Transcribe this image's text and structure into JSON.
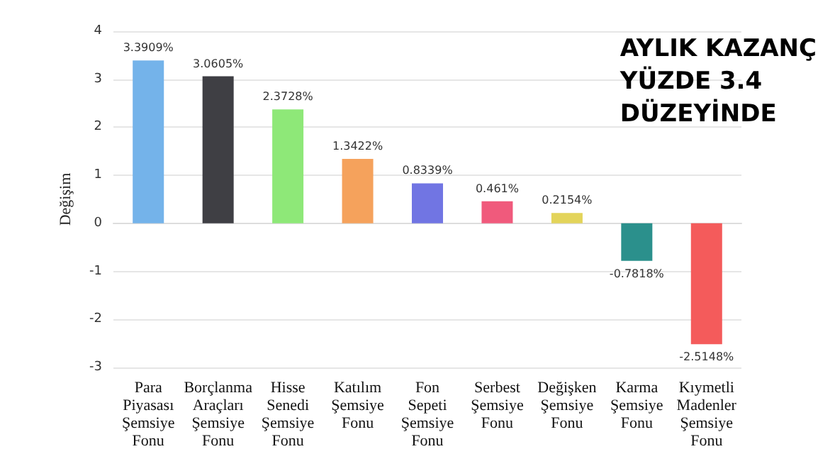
{
  "chart_data": {
    "type": "bar",
    "title": "AYLIK KAZANÇ\nYÜZDE 3.4\nDÜZEYİNDE",
    "ylabel": "Değişim",
    "categories": [
      "Para Piyasası Şemsiye Fonu",
      "Borçlanma Araçları Şemsiye Fonu",
      "Hisse Senedi Şemsiye Fonu",
      "Katılım Şemsiye Fonu",
      "Fon Sepeti Şemsiye Fonu",
      "Serbest Şemsiye Fonu",
      "Değişken Şemsiye Fonu",
      "Karma Şemsiye Fonu",
      "Kıymetli Madenler Şemsiye Fonu"
    ],
    "values": [
      3.3909,
      3.0605,
      2.3728,
      1.3422,
      0.8339,
      0.461,
      0.2154,
      -0.7818,
      -2.5148
    ],
    "value_labels": [
      "3.3909%",
      "3.0605%",
      "2.3728%",
      "1.3422%",
      "0.8339%",
      "0.461%",
      "0.2154%",
      "-0.7818%",
      "-2.5148%"
    ],
    "colors": [
      "#74b3ea",
      "#3f3f44",
      "#8ee878",
      "#f5a25c",
      "#7175e3",
      "#f05a7c",
      "#e3d45a",
      "#2b908c",
      "#f45b5b"
    ],
    "ylim": [
      -3,
      4
    ],
    "yticks": [
      -3,
      -2,
      -1,
      0,
      1,
      2,
      3,
      4
    ],
    "grid": true
  }
}
